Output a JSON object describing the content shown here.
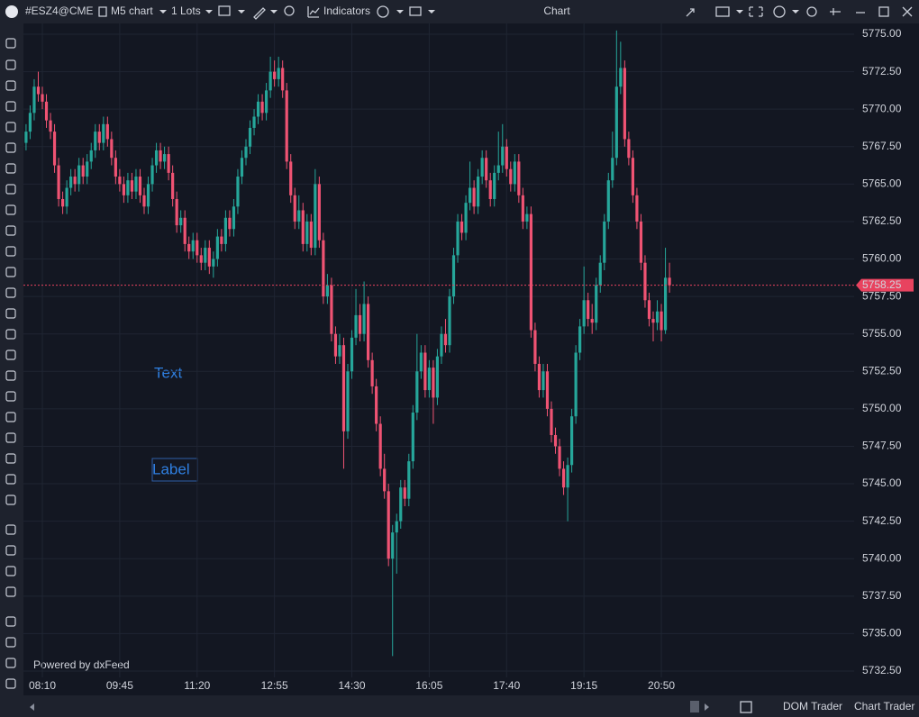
{
  "ui": {
    "symbol": "#ESZ4@CME",
    "timeframe": "M5 chart",
    "lots": "1 Lots",
    "indicators": "Indicators",
    "window_title": "Chart",
    "dom_trader": "DOM Trader",
    "chart_trader": "Chart Trader",
    "powered_by": "Powered by dxFeed",
    "text_object": "Text",
    "label_object": "Label"
  },
  "chart_data": {
    "type": "candlestick",
    "up_color": "#26a69a",
    "down_color": "#ef5373",
    "last_price_color": "#e8435f",
    "grid": true,
    "last_price": 5758.25,
    "ylim": [
      5732.5,
      5775
    ],
    "yticks": [
      {
        "value": 5732.5,
        "label": "5732.50"
      },
      {
        "value": 5735,
        "label": "5735.00"
      },
      {
        "value": 5737.5,
        "label": "5737.50"
      },
      {
        "value": 5740,
        "label": "5740.00"
      },
      {
        "value": 5742.5,
        "label": "5742.50"
      },
      {
        "value": 5745,
        "label": "5745.00"
      },
      {
        "value": 5747.5,
        "label": "5747.50"
      },
      {
        "value": 5750,
        "label": "5750.00"
      },
      {
        "value": 5752.5,
        "label": "5752.50"
      },
      {
        "value": 5755,
        "label": "5755.00"
      },
      {
        "value": 5757.5,
        "label": "5757.50"
      },
      {
        "value": 5760,
        "label": "5760.00"
      },
      {
        "value": 5762.5,
        "label": "5762.50"
      },
      {
        "value": 5765,
        "label": "5765.00"
      },
      {
        "value": 5767.5,
        "label": "5767.50"
      },
      {
        "value": 5770,
        "label": "5770.00"
      },
      {
        "value": 5772.5,
        "label": "5772.50"
      },
      {
        "value": 5775,
        "label": "5775.00"
      }
    ],
    "categories": [
      null,
      null,
      null,
      null,
      "08:10",
      null,
      null,
      null,
      null,
      null,
      null,
      null,
      null,
      null,
      null,
      null,
      null,
      null,
      null,
      null,
      null,
      null,
      null,
      "09:45",
      null,
      null,
      null,
      null,
      null,
      null,
      null,
      null,
      null,
      null,
      null,
      null,
      null,
      null,
      null,
      null,
      null,
      null,
      "11:20",
      null,
      null,
      null,
      null,
      null,
      null,
      null,
      null,
      null,
      null,
      null,
      null,
      null,
      null,
      null,
      null,
      null,
      null,
      "12:55",
      null,
      null,
      null,
      null,
      null,
      null,
      null,
      null,
      null,
      null,
      null,
      null,
      null,
      null,
      null,
      null,
      null,
      null,
      "14:30",
      null,
      null,
      null,
      null,
      null,
      null,
      null,
      null,
      null,
      null,
      null,
      null,
      null,
      null,
      null,
      null,
      null,
      null,
      "16:05",
      null,
      null,
      null,
      null,
      null,
      null,
      null,
      null,
      null,
      null,
      null,
      null,
      null,
      null,
      null,
      null,
      null,
      null,
      "17:40",
      null,
      null,
      null,
      null,
      null,
      null,
      null,
      null,
      null,
      null,
      null,
      null,
      null,
      null,
      null,
      null,
      null,
      null,
      "19:15",
      null,
      null,
      null,
      null,
      null,
      null,
      null,
      null,
      null,
      null,
      null,
      null,
      null,
      null,
      null,
      null,
      null,
      null,
      "20:50",
      null,
      null
    ],
    "candles": [
      [
        5767.75,
        5769,
        5767.25,
        5768.5
      ],
      [
        5768.5,
        5770.25,
        5768,
        5769.75
      ],
      [
        5769.75,
        5772,
        5769.25,
        5771.5
      ],
      [
        5771.5,
        5772.5,
        5770.5,
        5771
      ],
      [
        5771,
        5771.5,
        5770,
        5770.5
      ],
      [
        5770.5,
        5771,
        5768.75,
        5769.25
      ],
      [
        5769.25,
        5769.75,
        5768,
        5768.5
      ],
      [
        5768.5,
        5769,
        5765.75,
        5766.25
      ],
      [
        5766.25,
        5766.75,
        5763.5,
        5764
      ],
      [
        5764,
        5764.5,
        5763,
        5763.5
      ],
      [
        5763.5,
        5765.25,
        5763,
        5764.75
      ],
      [
        5764.75,
        5766,
        5764.25,
        5765.5
      ],
      [
        5765.5,
        5766,
        5764.5,
        5765
      ],
      [
        5765,
        5766.75,
        5764.5,
        5766.25
      ],
      [
        5766.25,
        5766.75,
        5765,
        5765.5
      ],
      [
        5765.5,
        5767,
        5765,
        5766.5
      ],
      [
        5766.5,
        5767.75,
        5766,
        5767.25
      ],
      [
        5767.25,
        5769,
        5766.75,
        5768.5
      ],
      [
        5768.5,
        5769,
        5767.25,
        5767.75
      ],
      [
        5767.75,
        5769.5,
        5767.25,
        5769
      ],
      [
        5769,
        5769.5,
        5767.5,
        5768
      ],
      [
        5768,
        5768.5,
        5766.25,
        5766.75
      ],
      [
        5766.75,
        5767.25,
        5765,
        5765.5
      ],
      [
        5765.5,
        5766,
        5764.5,
        5765
      ],
      [
        5765,
        5765.5,
        5763.75,
        5764.25
      ],
      [
        5764.25,
        5765.75,
        5763.75,
        5765.25
      ],
      [
        5765.25,
        5765.75,
        5764,
        5764.5
      ],
      [
        5764.5,
        5766,
        5764,
        5765.5
      ],
      [
        5765.5,
        5766,
        5763.75,
        5764.25
      ],
      [
        5764.25,
        5764.75,
        5763,
        5763.5
      ],
      [
        5763.5,
        5765.5,
        5763,
        5765
      ],
      [
        5765,
        5766.75,
        5764.5,
        5766.25
      ],
      [
        5766.25,
        5767.75,
        5765.75,
        5767.25
      ],
      [
        5767.25,
        5767.75,
        5766,
        5766.5
      ],
      [
        5766.5,
        5767.5,
        5766,
        5767
      ],
      [
        5767,
        5767.5,
        5765.25,
        5765.75
      ],
      [
        5765.75,
        5766.25,
        5763.5,
        5764
      ],
      [
        5764,
        5764.5,
        5761.75,
        5762.25
      ],
      [
        5762.25,
        5763.25,
        5761.75,
        5762.75
      ],
      [
        5762.75,
        5763.25,
        5760.5,
        5761
      ],
      [
        5761,
        5761.5,
        5760,
        5760.5
      ],
      [
        5760.5,
        5761.75,
        5760,
        5761.25
      ],
      [
        5761.25,
        5761.75,
        5759.75,
        5760.25
      ],
      [
        5760.25,
        5760.75,
        5759.25,
        5759.75
      ],
      [
        5759.75,
        5761.25,
        5759.25,
        5760.75
      ],
      [
        5760.75,
        5761.25,
        5759,
        5759.5
      ],
      [
        5759.5,
        5760.5,
        5758.75,
        5760
      ],
      [
        5760,
        5762,
        5759.5,
        5761.5
      ],
      [
        5761.5,
        5762,
        5760.5,
        5761
      ],
      [
        5761,
        5763.25,
        5760.5,
        5762.75
      ],
      [
        5762.75,
        5763.25,
        5761.5,
        5762
      ],
      [
        5762,
        5764,
        5761.5,
        5763.5
      ],
      [
        5763.5,
        5766,
        5763,
        5765.5
      ],
      [
        5765.5,
        5767.25,
        5765,
        5766.75
      ],
      [
        5766.75,
        5768,
        5766.25,
        5767.5
      ],
      [
        5767.5,
        5769.25,
        5767,
        5768.75
      ],
      [
        5768.75,
        5770,
        5768.25,
        5769.5
      ],
      [
        5769.5,
        5771,
        5769,
        5770.5
      ],
      [
        5770.5,
        5771,
        5769.25,
        5769.75
      ],
      [
        5769.75,
        5771.75,
        5769.25,
        5771.25
      ],
      [
        5771.25,
        5773.5,
        5770.75,
        5772.5
      ],
      [
        5772.5,
        5773.25,
        5771.5,
        5772
      ],
      [
        5772,
        5773.5,
        5771.5,
        5772.75
      ],
      [
        5772.75,
        5773.25,
        5770.75,
        5771.25
      ],
      [
        5771.25,
        5771.75,
        5766,
        5766.5
      ],
      [
        5766.5,
        5767,
        5763.75,
        5764.25
      ],
      [
        5764.25,
        5764.75,
        5762,
        5762.5
      ],
      [
        5762.5,
        5764.25,
        5762,
        5763.25
      ],
      [
        5763.25,
        5763.75,
        5760.5,
        5761
      ],
      [
        5761,
        5763,
        5760.5,
        5762.5
      ],
      [
        5762.5,
        5763,
        5760.25,
        5760.75
      ],
      [
        5760.75,
        5766,
        5760.25,
        5765
      ],
      [
        5765,
        5765.5,
        5760.75,
        5761.25
      ],
      [
        5761.25,
        5761.75,
        5757,
        5757.5
      ],
      [
        5757.5,
        5759,
        5757,
        5758.25
      ],
      [
        5758.25,
        5758.75,
        5754.5,
        5755
      ],
      [
        5755,
        5755.5,
        5753,
        5753.5
      ],
      [
        5753.5,
        5755,
        5753,
        5754.25
      ],
      [
        5754.25,
        5754.75,
        5746,
        5748.5
      ],
      [
        5748.5,
        5753,
        5748,
        5752.5
      ],
      [
        5752.5,
        5755.25,
        5752,
        5754.75
      ],
      [
        5754.75,
        5758,
        5754.25,
        5756.25
      ],
      [
        5756.25,
        5757,
        5754.5,
        5755
      ],
      [
        5755,
        5758.5,
        5754.5,
        5757
      ],
      [
        5757,
        5757.5,
        5752.75,
        5753.25
      ],
      [
        5753.25,
        5753.75,
        5751,
        5751.5
      ],
      [
        5751.5,
        5752,
        5748.5,
        5749
      ],
      [
        5749,
        5749.5,
        5745.5,
        5746
      ],
      [
        5746,
        5747,
        5744,
        5744.5
      ],
      [
        5744.5,
        5745,
        5739.5,
        5740
      ],
      [
        5740,
        5742.25,
        5733.5,
        5741.75
      ],
      [
        5741.75,
        5743,
        5739,
        5742.5
      ],
      [
        5742.5,
        5745.25,
        5742,
        5744.75
      ],
      [
        5744.75,
        5745.25,
        5743.5,
        5744
      ],
      [
        5744,
        5747,
        5743.5,
        5746.5
      ],
      [
        5746.5,
        5750.25,
        5746,
        5749.75
      ],
      [
        5749.75,
        5755,
        5749.25,
        5752.5
      ],
      [
        5752.5,
        5754.25,
        5752,
        5753.75
      ],
      [
        5753.75,
        5754.25,
        5750.75,
        5751.25
      ],
      [
        5751.25,
        5753.25,
        5750.75,
        5752.75
      ],
      [
        5752.75,
        5753.25,
        5749,
        5750.75
      ],
      [
        5750.75,
        5754,
        5750.25,
        5753.5
      ],
      [
        5753.5,
        5755.5,
        5753,
        5755
      ],
      [
        5755,
        5756,
        5753.75,
        5754.25
      ],
      [
        5754.25,
        5758,
        5753.75,
        5757.5
      ],
      [
        5757.5,
        5760.75,
        5757,
        5760.25
      ],
      [
        5760.25,
        5763,
        5759.75,
        5762.5
      ],
      [
        5762.5,
        5763,
        5761.25,
        5761.75
      ],
      [
        5761.75,
        5764.25,
        5761.25,
        5763.75
      ],
      [
        5763.75,
        5766.5,
        5763.25,
        5764.75
      ],
      [
        5764.75,
        5765.25,
        5763,
        5763.5
      ],
      [
        5763.5,
        5766,
        5763,
        5765.5
      ],
      [
        5765.5,
        5767.25,
        5765,
        5766.75
      ],
      [
        5766.75,
        5767.25,
        5764.75,
        5765.25
      ],
      [
        5765.25,
        5765.75,
        5763.5,
        5764
      ],
      [
        5764,
        5766.25,
        5763.5,
        5765.75
      ],
      [
        5765.75,
        5768.5,
        5765.25,
        5766.25
      ],
      [
        5766.25,
        5769,
        5765.75,
        5767.5
      ],
      [
        5767.5,
        5768,
        5765.5,
        5766
      ],
      [
        5766,
        5766.5,
        5764.5,
        5765
      ],
      [
        5765,
        5767,
        5764.5,
        5766.5
      ],
      [
        5766.5,
        5767,
        5763.75,
        5764.25
      ],
      [
        5764.25,
        5764.75,
        5762,
        5762.5
      ],
      [
        5762.5,
        5763.5,
        5762,
        5763
      ],
      [
        5763,
        5763.5,
        5754.75,
        5755.25
      ],
      [
        5755.25,
        5755.75,
        5752.5,
        5753
      ],
      [
        5753,
        5753.5,
        5750.75,
        5751.25
      ],
      [
        5751.25,
        5753,
        5750.75,
        5752.5
      ],
      [
        5752.5,
        5753,
        5749.5,
        5750
      ],
      [
        5750,
        5750.5,
        5747.75,
        5748.25
      ],
      [
        5748.25,
        5748.75,
        5747,
        5747.5
      ],
      [
        5747.5,
        5748,
        5745.5,
        5746
      ],
      [
        5746,
        5746.5,
        5744.25,
        5744.75
      ],
      [
        5744.75,
        5746.75,
        5742.5,
        5746.25
      ],
      [
        5746.25,
        5750,
        5745.75,
        5749.5
      ],
      [
        5749.5,
        5754.25,
        5749,
        5753.75
      ],
      [
        5753.75,
        5756,
        5753.25,
        5755.5
      ],
      [
        5755.5,
        5759.5,
        5755,
        5757.25
      ],
      [
        5757.25,
        5757.75,
        5755.5,
        5756
      ],
      [
        5756,
        5757,
        5755,
        5755.75
      ],
      [
        5755.75,
        5758.75,
        5755.25,
        5758.25
      ],
      [
        5758.25,
        5760.25,
        5757.75,
        5759.75
      ],
      [
        5759.75,
        5763,
        5759.25,
        5762.5
      ],
      [
        5762.5,
        5765.75,
        5762,
        5765.25
      ],
      [
        5765.25,
        5768.5,
        5764.75,
        5766.75
      ],
      [
        5766.75,
        5775.25,
        5766.25,
        5771.5
      ],
      [
        5771.5,
        5774.5,
        5771,
        5772.75
      ],
      [
        5772.75,
        5773.25,
        5767.5,
        5768
      ],
      [
        5768,
        5768.5,
        5766.25,
        5766.75
      ],
      [
        5766.75,
        5767.25,
        5763.75,
        5764.25
      ],
      [
        5764.25,
        5764.75,
        5762,
        5762.5
      ],
      [
        5762.5,
        5763,
        5759.25,
        5759.75
      ],
      [
        5759.75,
        5760.25,
        5756.75,
        5757.25
      ],
      [
        5757.25,
        5757.75,
        5755.5,
        5756
      ],
      [
        5756,
        5756.5,
        5754.5,
        5755.75
      ],
      [
        5755.75,
        5757.25,
        5755.25,
        5756.5
      ],
      [
        5756.5,
        5757,
        5754.5,
        5755.25
      ],
      [
        5755.25,
        5760.75,
        5755,
        5758.75
      ],
      [
        5758.75,
        5759.75,
        5757.75,
        5758.25
      ]
    ]
  }
}
